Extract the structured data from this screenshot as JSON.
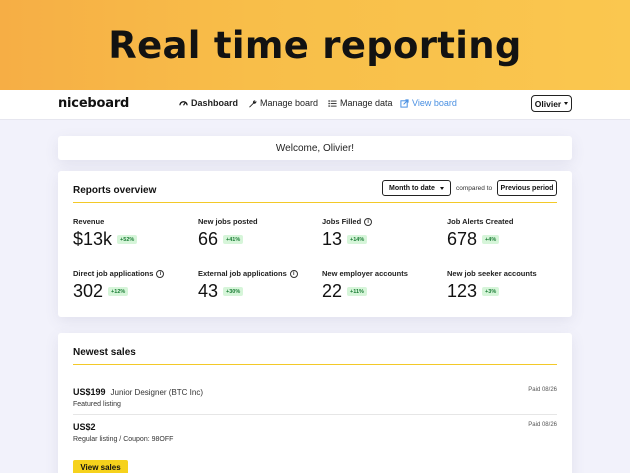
{
  "banner": {
    "title": "Real time reporting"
  },
  "nav": {
    "logo": "niceboard",
    "items": [
      {
        "label": "Dashboard",
        "icon": "dashboard-icon"
      },
      {
        "label": "Manage board",
        "icon": "wrench-icon"
      },
      {
        "label": "Manage data",
        "icon": "list-icon"
      },
      {
        "label": "View board",
        "icon": "external-link-icon"
      }
    ],
    "user": "Olivier"
  },
  "welcome": "Welcome, Olivier!",
  "reports": {
    "title": "Reports overview",
    "period": "Month to date",
    "compared_label": "compared to",
    "compare_button": "Previous period",
    "metrics": [
      {
        "label": "Revenue",
        "value": "$13k",
        "change": "+52%"
      },
      {
        "label": "New jobs posted",
        "value": "66",
        "change": "+41%"
      },
      {
        "label": "Jobs Filled",
        "value": "13",
        "change": "+14%",
        "info": true
      },
      {
        "label": "Job Alerts Created",
        "value": "678",
        "change": "+4%"
      },
      {
        "label": "Direct job applications",
        "value": "302",
        "change": "+12%",
        "info": true
      },
      {
        "label": "External job applications",
        "value": "43",
        "change": "+30%",
        "info": true
      },
      {
        "label": "New employer accounts",
        "value": "22",
        "change": "+11%"
      },
      {
        "label": "New job seeker accounts",
        "value": "123",
        "change": "+3%"
      }
    ]
  },
  "sales": {
    "title": "Newest sales",
    "items": [
      {
        "price": "US$199",
        "name": "Junior Designer (BTC Inc)",
        "detail": "Featured listing",
        "status": "Paid 08/26"
      },
      {
        "price": "US$2",
        "name": "",
        "detail": "Regular listing / Coupon: 98OFF",
        "status": "Paid 08/26"
      }
    ],
    "view_button": "View sales"
  },
  "colors": {
    "accent": "#f6d21c",
    "banner": "#f8be49",
    "badge_bg": "#d6f5d9",
    "badge_text": "#1a7d35",
    "link": "#4a90e2"
  }
}
